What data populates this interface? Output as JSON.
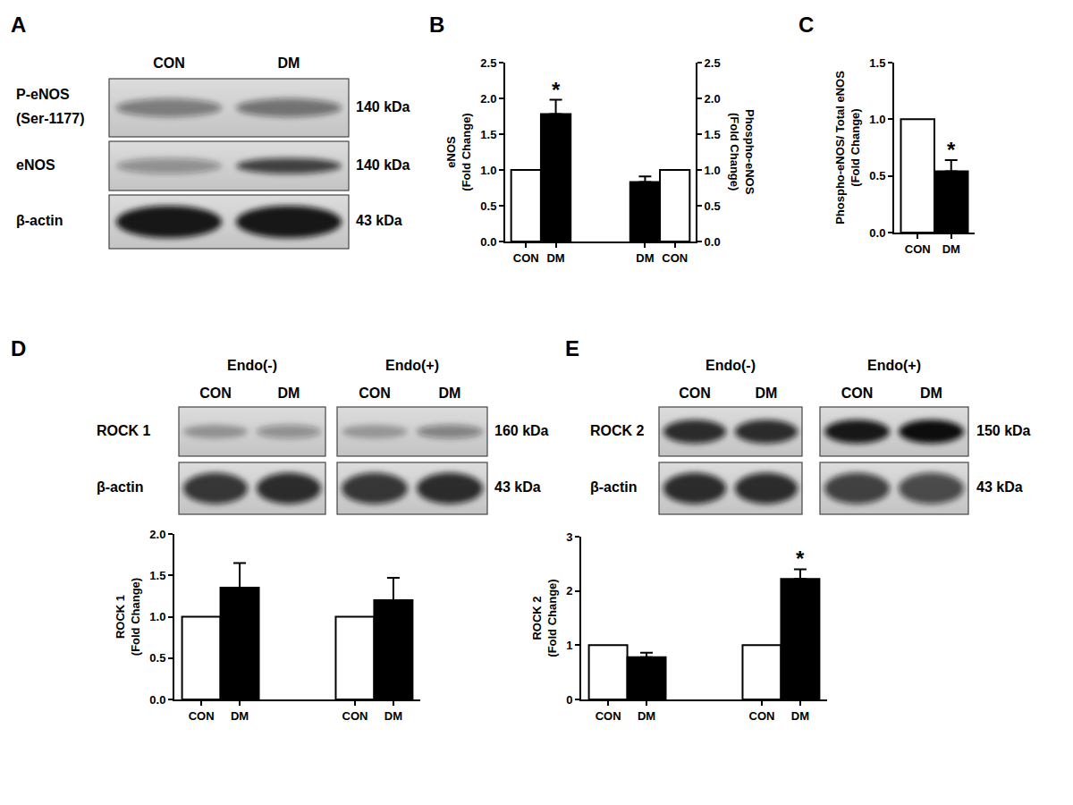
{
  "panel_labels": [
    "A",
    "B",
    "C",
    "D",
    "E"
  ],
  "blots": [
    {
      "groups": [
        {
          "columns": [
            "CON",
            "DM"
          ]
        }
      ],
      "rows": [
        {
          "label": [
            "P-eNOS",
            "(Ser-1177)"
          ],
          "size": "140 kDa"
        },
        {
          "label": [
            "eNOS"
          ],
          "size": "140 kDa"
        },
        {
          "label": [
            "β-actin"
          ],
          "size": "43 kDa"
        }
      ]
    },
    {
      "groups": [
        {
          "label": "Endo(-)",
          "columns": [
            "CON",
            "DM"
          ]
        },
        {
          "label": "Endo(+)",
          "columns": [
            "CON",
            "DM"
          ]
        }
      ],
      "rows": [
        {
          "label": [
            "ROCK 1"
          ],
          "size": "160 kDa"
        },
        {
          "label": [
            "β-actin"
          ],
          "size": "43 kDa"
        }
      ]
    },
    {
      "groups": [
        {
          "label": "Endo(-)",
          "columns": [
            "CON",
            "DM"
          ]
        },
        {
          "label": "Endo(+)",
          "columns": [
            "CON",
            "DM"
          ]
        }
      ],
      "rows": [
        {
          "label": [
            "ROCK 2"
          ],
          "size": "150 kDa"
        },
        {
          "label": [
            "β-actin"
          ],
          "size": "43 kDa"
        }
      ]
    }
  ],
  "chart_data": [
    {
      "type": "bar",
      "ylabel": [
        "eNOS",
        "(Fold Change)"
      ],
      "y2label": [
        "Phospho-eNOS",
        "(Fold Change)"
      ],
      "ylim": [
        0,
        2.5
      ],
      "yticks": [
        {
          "value": 0,
          "label": "0.0"
        },
        0.5,
        {
          "value": 1,
          "label": "1.0"
        },
        1.5,
        {
          "value": 2,
          "label": "2.0"
        },
        2.5
      ],
      "y2lim": [
        0,
        2.5
      ],
      "y2ticks": [
        {
          "value": 0,
          "label": "0.0"
        },
        0.5,
        {
          "value": 1,
          "label": "1.0"
        },
        1.5,
        {
          "value": 2,
          "label": "2.0"
        },
        2.5
      ],
      "grid": false,
      "series": [
        {
          "categories": [
            "CON",
            "DM"
          ],
          "values": [
            1.0,
            1.78
          ],
          "errors": [
            null,
            0.2
          ],
          "colors": [
            "#ffffff",
            "#000000"
          ],
          "annotations": [
            null,
            "*"
          ]
        },
        {
          "categories": [
            "DM",
            "CON"
          ],
          "values": [
            0.83,
            1.0
          ],
          "errors": [
            0.08,
            null
          ],
          "colors": [
            "#000000",
            "#ffffff"
          ],
          "annotations": [
            null,
            null
          ],
          "axis": "y2"
        }
      ]
    },
    {
      "type": "bar",
      "ylabel": [
        "Phospho-eNOS/ Total eNOS",
        "(Fold Change)"
      ],
      "ylim": [
        0,
        1.5
      ],
      "yticks": [
        {
          "value": 0,
          "label": "0.0"
        },
        0.5,
        {
          "value": 1,
          "label": "1.0"
        },
        1.5
      ],
      "grid": false,
      "series": [
        {
          "categories": [
            "CON",
            "DM"
          ],
          "values": [
            1.0,
            0.54
          ],
          "errors": [
            null,
            0.1
          ],
          "colors": [
            "#ffffff",
            "#000000"
          ],
          "annotations": [
            null,
            "*"
          ]
        }
      ]
    },
    {
      "type": "bar",
      "ylabel": [
        "ROCK 1",
        "(Fold Change)"
      ],
      "ylim": [
        0,
        2
      ],
      "yticks": [
        {
          "value": 0,
          "label": "0.0"
        },
        0.5,
        {
          "value": 1,
          "label": "1.0"
        },
        1.5,
        {
          "value": 2,
          "label": "2.0"
        }
      ],
      "grid": false,
      "series": [
        {
          "categories": [
            "CON",
            "DM",
            "CON",
            "DM"
          ],
          "values": [
            1.0,
            1.35,
            1.0,
            1.2
          ],
          "errors": [
            null,
            0.3,
            null,
            0.27
          ],
          "colors": [
            "#ffffff",
            "#000000",
            "#ffffff",
            "#000000"
          ],
          "annotations": [
            null,
            null,
            null,
            null
          ]
        }
      ]
    },
    {
      "type": "bar",
      "ylabel": [
        "ROCK 2",
        "(Fold Change)"
      ],
      "ylim": [
        0,
        3
      ],
      "yticks": [
        0,
        1,
        2,
        3
      ],
      "grid": false,
      "series": [
        {
          "categories": [
            "CON",
            "DM",
            "CON",
            "DM"
          ],
          "values": [
            1.0,
            0.78,
            1.0,
            2.22
          ],
          "errors": [
            null,
            0.08,
            null,
            0.18
          ],
          "colors": [
            "#ffffff",
            "#000000",
            "#ffffff",
            "#000000"
          ],
          "annotations": [
            null,
            null,
            null,
            "*"
          ]
        }
      ]
    }
  ]
}
